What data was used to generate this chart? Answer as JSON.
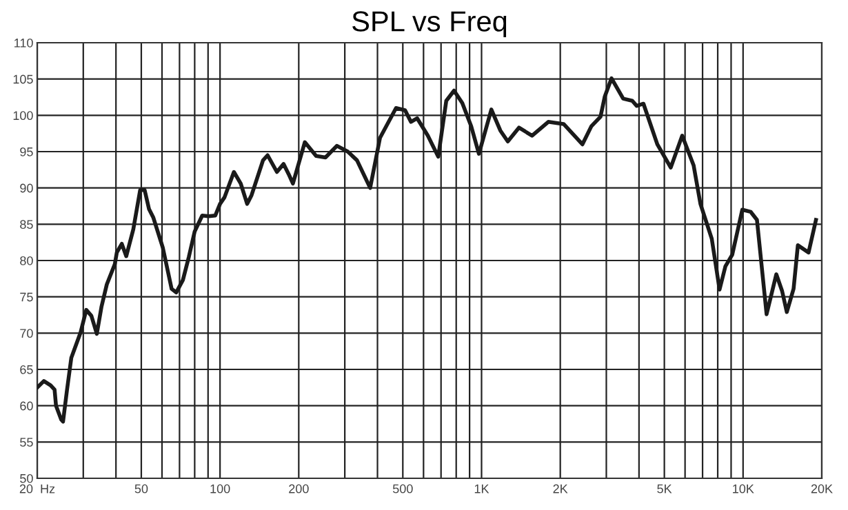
{
  "chart_data": {
    "type": "line",
    "title": "SPL vs Freq",
    "x": [
      20,
      21.2,
      22.5,
      23.3,
      23.6,
      24.7,
      25.1,
      26,
      27,
      29.3,
      30.8,
      32.2,
      33.8,
      35.2,
      36.9,
      39.6,
      40.3,
      42.1,
      43.8,
      46.6,
      49.5,
      51.5,
      53.5,
      55.6,
      60.4,
      65.3,
      68,
      72.1,
      76,
      80,
      85.5,
      90.5,
      95.9,
      100,
      104,
      113,
      120,
      127,
      132,
      146,
      152,
      165,
      175,
      183,
      190,
      211,
      233,
      253,
      280,
      308,
      334,
      375,
      409,
      471,
      510,
      537,
      567,
      623,
      683,
      733,
      785,
      844,
      913,
      977,
      1090,
      1180,
      1260,
      1390,
      1560,
      1800,
      2060,
      2430,
      2630,
      2850,
      2960,
      3140,
      3480,
      3770,
      3920,
      4160,
      4700,
      5290,
      5850,
      6470,
      6870,
      7590,
      8130,
      8560,
      9090,
      9930,
      10700,
      11300,
      12300,
      13400,
      14100,
      14700,
      15600,
      16200,
      17800,
      19000
    ],
    "series": [
      {
        "color": "#1a1a1a",
        "values": [
          62.5,
          63.4,
          62.8,
          62.2,
          60,
          58.1,
          57.8,
          62.2,
          66.6,
          70.1,
          73.2,
          72.4,
          69.9,
          73.6,
          76.7,
          79.5,
          81.1,
          82.3,
          80.6,
          84.3,
          89.7,
          89.7,
          87.1,
          85.9,
          81.8,
          76.1,
          75.6,
          77.3,
          80.5,
          84,
          86.2,
          86.1,
          86.2,
          87.8,
          88.7,
          92.2,
          90.6,
          87.8,
          89,
          93.8,
          94.5,
          92.2,
          93.3,
          91.9,
          90.6,
          96.3,
          94.4,
          94.2,
          95.8,
          95,
          93.8,
          90,
          96.9,
          101,
          100.7,
          99.1,
          99.6,
          97.2,
          94.3,
          102,
          103.4,
          101.7,
          98.5,
          94.7,
          100.8,
          97.9,
          96.4,
          98.3,
          97.2,
          99.1,
          98.8,
          96,
          98.5,
          99.8,
          102.6,
          105.1,
          102.3,
          102,
          101.3,
          101.6,
          96,
          92.8,
          97.2,
          93.1,
          87.8,
          83,
          76,
          79.2,
          80.8,
          87,
          86.7,
          85.6,
          72.6,
          78.1,
          75.8,
          72.9,
          76.1,
          82.1,
          81.1,
          85.6
        ]
      }
    ],
    "log": "x",
    "xlim": [
      20,
      20000
    ],
    "ylim": [
      50,
      110
    ],
    "xticks": [
      {
        "value": 20,
        "label": "20  Hz"
      },
      {
        "value": 30,
        "label": null
      },
      {
        "value": 40,
        "label": null
      },
      50,
      {
        "value": 60,
        "label": null
      },
      {
        "value": 70,
        "label": null
      },
      {
        "value": 80,
        "label": null
      },
      {
        "value": 90,
        "label": null
      },
      100,
      200,
      {
        "value": 300,
        "label": null
      },
      {
        "value": 400,
        "label": null
      },
      500,
      {
        "value": 600,
        "label": null
      },
      {
        "value": 700,
        "label": null
      },
      {
        "value": 800,
        "label": null
      },
      {
        "value": 900,
        "label": null
      },
      {
        "value": 1000,
        "label": "1K"
      },
      {
        "value": 2000,
        "label": "2K"
      },
      {
        "value": 3000,
        "label": null
      },
      {
        "value": 4000,
        "label": null
      },
      {
        "value": 5000,
        "label": "5K"
      },
      {
        "value": 6000,
        "label": null
      },
      {
        "value": 7000,
        "label": null
      },
      {
        "value": 8000,
        "label": null
      },
      {
        "value": 9000,
        "label": null
      },
      {
        "value": 10000,
        "label": "10K"
      },
      {
        "value": 20000,
        "label": "20K"
      }
    ],
    "yticks": [
      50,
      55,
      60,
      65,
      70,
      75,
      80,
      85,
      90,
      95,
      100,
      105,
      110
    ],
    "grid": true,
    "legend": false,
    "marker": "none",
    "line_style": "solid"
  }
}
